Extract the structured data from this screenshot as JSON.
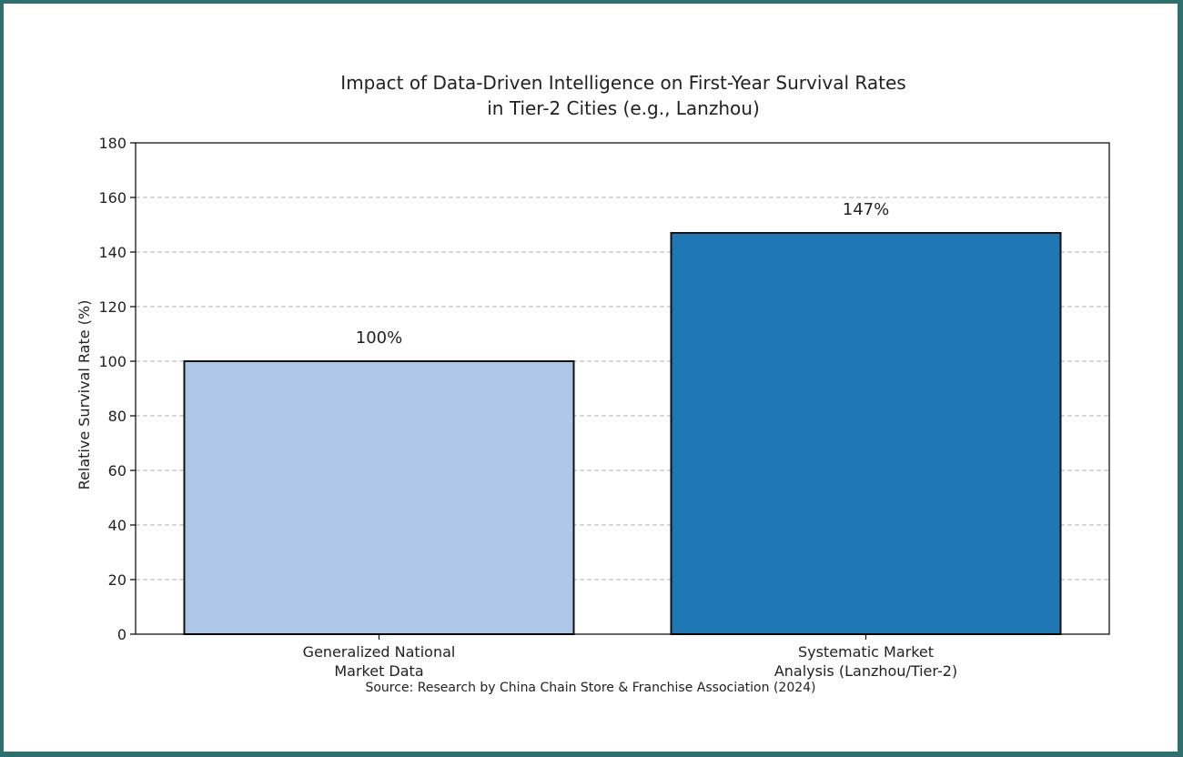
{
  "chart_data": {
    "type": "bar",
    "title_lines": [
      "Impact of Data-Driven Intelligence on First-Year Survival Rates",
      "in Tier-2 Cities (e.g., Lanzhou)"
    ],
    "ylabel": "Relative Survival Rate (%)",
    "ylim": [
      0,
      180
    ],
    "yticks": [
      0,
      20,
      40,
      60,
      80,
      100,
      120,
      140,
      160,
      180
    ],
    "grid": true,
    "categories": [
      [
        "Generalized National",
        "Market Data"
      ],
      [
        "Systematic Market",
        "Analysis (Lanzhou/Tier-2)"
      ]
    ],
    "values": [
      100,
      147
    ],
    "value_labels": [
      "100%",
      "147%"
    ],
    "colors": [
      "#aec7e8",
      "#1f77b4"
    ],
    "source": "Source: Research by China Chain Store & Franchise Association (2024)"
  }
}
